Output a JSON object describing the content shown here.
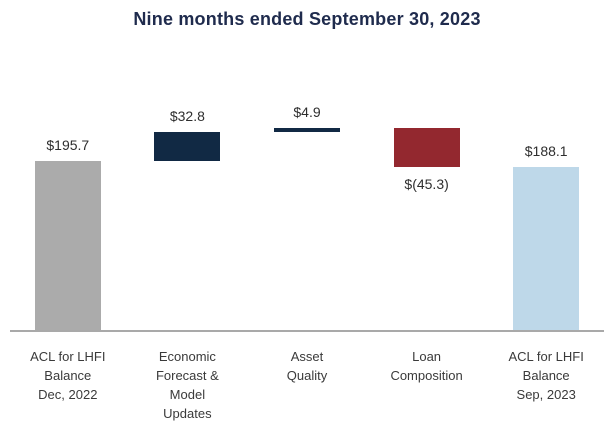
{
  "title": "Nine months ended September 30, 2023",
  "chart_data": {
    "type": "bar",
    "subtype": "waterfall",
    "title": "Nine months ended September 30, 2023",
    "categories": [
      "ACL for LHFI\nBalance\nDec, 2022",
      "Economic\nForecast &\nModel\nUpdates",
      "Asset\nQuality",
      "Loan\nComposition",
      "ACL for LHFI\nBalance\nSep, 2023"
    ],
    "values": [
      195.7,
      32.8,
      4.9,
      -45.3,
      188.1
    ],
    "value_labels": [
      "$195.7",
      "$32.8",
      "$4.9",
      "$(45.3)",
      "$188.1"
    ],
    "bar_kinds": [
      "total",
      "delta",
      "delta",
      "delta",
      "total"
    ],
    "bar_colors": [
      "#ababab",
      "#112944",
      "#112944",
      "#93282f",
      "#bed8e9"
    ],
    "label_positions": [
      "above",
      "above",
      "above",
      "below",
      "above"
    ],
    "cumulative": [
      195.7,
      228.5,
      233.4,
      188.1,
      188.1
    ],
    "ylim": [
      0,
      233.4
    ],
    "grid": false,
    "legend": false,
    "xlabel": "",
    "ylabel": ""
  },
  "colors": {
    "title": "#1f2b4d",
    "value_label": "#2e2e2e",
    "category_label": "#3a3a3a",
    "axis": "#a9a9a9",
    "background": "#ffffff"
  }
}
